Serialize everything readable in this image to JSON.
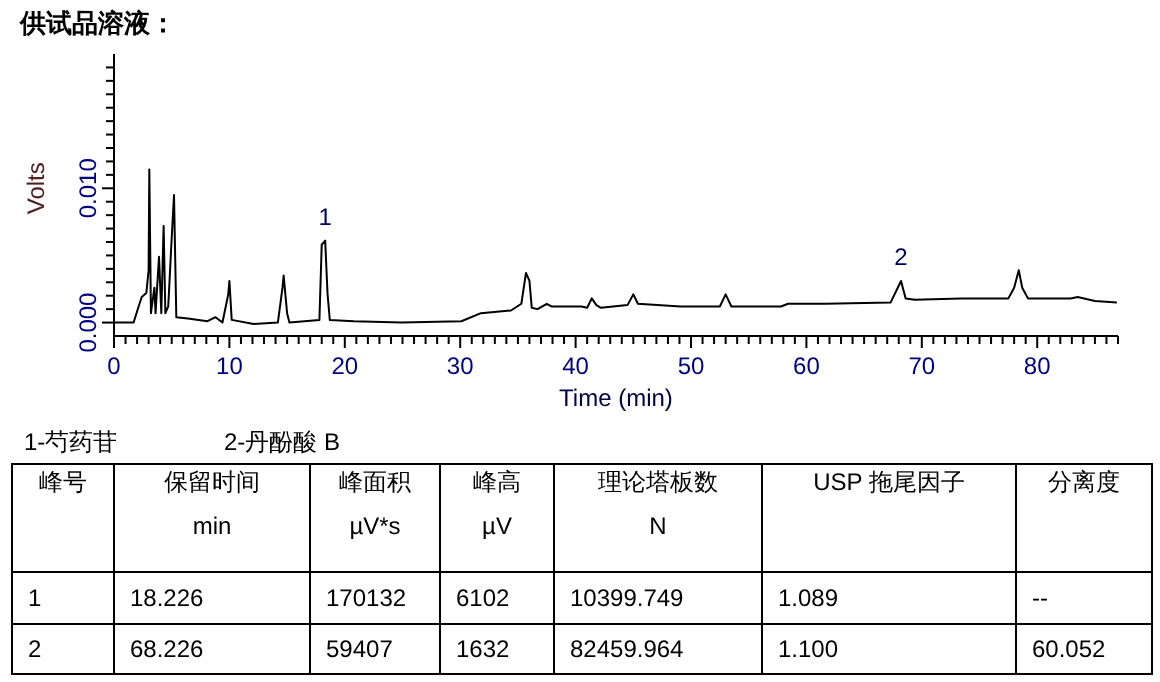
{
  "chart_data": [
    {
      "type": "line",
      "title": "供试品溶液：",
      "xlabel": "Time (min)",
      "ylabel": "Volts",
      "grid": false,
      "line_style": "solid",
      "xlim": [
        0,
        87
      ],
      "ylim": [
        -0.001,
        0.02
      ],
      "xticks": [
        0,
        {
          "value": 1,
          "label": null
        },
        {
          "value": 2,
          "label": null
        },
        {
          "value": 3,
          "label": null
        },
        {
          "value": 4,
          "label": null
        },
        {
          "value": 5,
          "label": null
        },
        {
          "value": 6,
          "label": null
        },
        {
          "value": 7,
          "label": null
        },
        {
          "value": 8,
          "label": null
        },
        {
          "value": 9,
          "label": null
        },
        10,
        {
          "value": 11,
          "label": null
        },
        {
          "value": 12,
          "label": null
        },
        {
          "value": 13,
          "label": null
        },
        {
          "value": 14,
          "label": null
        },
        {
          "value": 15,
          "label": null
        },
        {
          "value": 16,
          "label": null
        },
        {
          "value": 17,
          "label": null
        },
        {
          "value": 18,
          "label": null
        },
        {
          "value": 19,
          "label": null
        },
        20,
        {
          "value": 21,
          "label": null
        },
        {
          "value": 22,
          "label": null
        },
        {
          "value": 23,
          "label": null
        },
        {
          "value": 24,
          "label": null
        },
        {
          "value": 25,
          "label": null
        },
        {
          "value": 26,
          "label": null
        },
        {
          "value": 27,
          "label": null
        },
        {
          "value": 28,
          "label": null
        },
        {
          "value": 29,
          "label": null
        },
        30,
        {
          "value": 31,
          "label": null
        },
        {
          "value": 32,
          "label": null
        },
        {
          "value": 33,
          "label": null
        },
        {
          "value": 34,
          "label": null
        },
        {
          "value": 35,
          "label": null
        },
        {
          "value": 36,
          "label": null
        },
        {
          "value": 37,
          "label": null
        },
        {
          "value": 38,
          "label": null
        },
        {
          "value": 39,
          "label": null
        },
        40,
        {
          "value": 41,
          "label": null
        },
        {
          "value": 42,
          "label": null
        },
        {
          "value": 43,
          "label": null
        },
        {
          "value": 44,
          "label": null
        },
        {
          "value": 45,
          "label": null
        },
        {
          "value": 46,
          "label": null
        },
        {
          "value": 47,
          "label": null
        },
        {
          "value": 48,
          "label": null
        },
        {
          "value": 49,
          "label": null
        },
        50,
        {
          "value": 51,
          "label": null
        },
        {
          "value": 52,
          "label": null
        },
        {
          "value": 53,
          "label": null
        },
        {
          "value": 54,
          "label": null
        },
        {
          "value": 55,
          "label": null
        },
        {
          "value": 56,
          "label": null
        },
        {
          "value": 57,
          "label": null
        },
        {
          "value": 58,
          "label": null
        },
        {
          "value": 59,
          "label": null
        },
        60,
        {
          "value": 61,
          "label": null
        },
        {
          "value": 62,
          "label": null
        },
        {
          "value": 63,
          "label": null
        },
        {
          "value": 64,
          "label": null
        },
        {
          "value": 65,
          "label": null
        },
        {
          "value": 66,
          "label": null
        },
        {
          "value": 67,
          "label": null
        },
        {
          "value": 68,
          "label": null
        },
        {
          "value": 69,
          "label": null
        },
        70,
        {
          "value": 71,
          "label": null
        },
        {
          "value": 72,
          "label": null
        },
        {
          "value": 73,
          "label": null
        },
        {
          "value": 74,
          "label": null
        },
        {
          "value": 75,
          "label": null
        },
        {
          "value": 76,
          "label": null
        },
        {
          "value": 77,
          "label": null
        },
        {
          "value": 78,
          "label": null
        },
        {
          "value": 79,
          "label": null
        },
        80,
        {
          "value": 81,
          "label": null
        },
        {
          "value": 82,
          "label": null
        },
        {
          "value": 83,
          "label": null
        },
        {
          "value": 84,
          "label": null
        },
        {
          "value": 85,
          "label": null
        },
        {
          "value": 86,
          "label": null
        },
        {
          "value": 87,
          "label": null
        }
      ],
      "yticks": [
        {
          "value": 0,
          "label": "0.000"
        },
        {
          "value": 0.001,
          "label": null
        },
        {
          "value": 0.002,
          "label": null
        },
        {
          "value": 0.003,
          "label": null
        },
        {
          "value": 0.004,
          "label": null
        },
        {
          "value": 0.005,
          "label": null
        },
        {
          "value": 0.006,
          "label": null
        },
        {
          "value": 0.007,
          "label": null
        },
        {
          "value": 0.008,
          "label": null
        },
        {
          "value": 0.009,
          "label": null
        },
        {
          "value": 0.01,
          "label": "0.010"
        },
        {
          "value": 0.011,
          "label": null
        },
        {
          "value": 0.012,
          "label": null
        },
        {
          "value": 0.013,
          "label": null
        },
        {
          "value": 0.014,
          "label": null
        },
        {
          "value": 0.015,
          "label": null
        },
        {
          "value": 0.016,
          "label": null
        },
        {
          "value": 0.017,
          "label": null
        },
        {
          "value": 0.018,
          "label": null
        },
        {
          "value": 0.019,
          "label": null
        }
      ],
      "annotations": [
        {
          "text": "1",
          "x": 18.3,
          "y": 0.0061
        },
        {
          "text": "2",
          "x": 68.2,
          "y": 0.0031
        }
      ],
      "series": [
        {
          "color": "#000000",
          "x": [
            0,
            1.7,
            2.1,
            2.4,
            2.8,
            3.0,
            3.06,
            3.2,
            3.5,
            3.6,
            3.9,
            4.1,
            4.3,
            4.45,
            4.7,
            5.0,
            5.2,
            5.4,
            6.4,
            8.1,
            8.8,
            9.4,
            9.9,
            10.0,
            10.2,
            12.1,
            14.2,
            14.6,
            14.7,
            15.0,
            15.2,
            17.8,
            18.0,
            18.3,
            18.5,
            18.7,
            20.8,
            24.9,
            30.1,
            31.8,
            34.4,
            35.3,
            35.7,
            36.0,
            36.2,
            36.7,
            37.5,
            37.9,
            40.5,
            41.0,
            41.4,
            41.8,
            42.2,
            44.5,
            45.0,
            45.4,
            49.1,
            52.5,
            53.0,
            53.5,
            57.8,
            58.4,
            61.6,
            67.3,
            68.2,
            68.6,
            69.4,
            73.4,
            77.5,
            78.0,
            78.4,
            78.7,
            79.2,
            82.9,
            83.5,
            85.0,
            86.9
          ],
          "values": [
            0,
            0,
            0.0011,
            0.0019,
            0.0022,
            0.0039,
            0.0114,
            0.0007,
            0.0026,
            0.0007,
            0.0049,
            0.0007,
            0.0072,
            0.0007,
            0.0012,
            0.0063,
            0.0095,
            0.0004,
            0.0003,
            0.0001,
            0.0004,
            0,
            0.0021,
            0.0031,
            0.0002,
            -0.0001,
            0,
            0.0026,
            0.0035,
            0.0007,
            0,
            0.0002,
            0.0058,
            0.0061,
            0.0022,
            0.0002,
            0.0001,
            0,
            0.0001,
            0.0007,
            0.0009,
            0.0014,
            0.0037,
            0.0031,
            0.0011,
            0.001,
            0.0014,
            0.0012,
            0.0012,
            0.0011,
            0.0018,
            0.0013,
            0.0011,
            0.0013,
            0.0021,
            0.0014,
            0.0012,
            0.0012,
            0.0021,
            0.0012,
            0.0012,
            0.0014,
            0.0014,
            0.0015,
            0.0031,
            0.0018,
            0.0017,
            0.0018,
            0.0018,
            0.0026,
            0.0039,
            0.0026,
            0.0018,
            0.0018,
            0.0019,
            0.0016,
            0.0015
          ]
        }
      ]
    },
    {
      "type": "other",
      "annotations": [
        "1-芍药苷",
        "2-丹酚酸 B"
      ],
      "categories": [
        "峰号",
        "保留时间",
        "峰面积",
        "峰高",
        "理论塔板数",
        "USP 拖尾因子",
        "分离度"
      ],
      "cell_labels": [
        [
          null,
          "min",
          "µV*s",
          "µV",
          "N",
          null,
          null
        ],
        [
          "1",
          "18.226",
          "170132",
          "6102",
          "10399.749",
          "1.089",
          "--"
        ],
        [
          "2",
          "68.226",
          "59407",
          "1632",
          "82459.964",
          "1.100",
          "60.052"
        ]
      ]
    }
  ]
}
